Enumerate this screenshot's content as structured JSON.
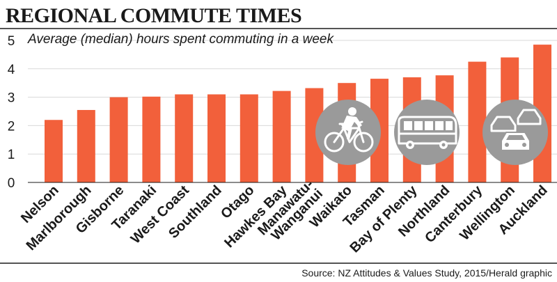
{
  "colors": {
    "bar": "#f2603b",
    "grid": "#d8d8d8",
    "text": "#1a1a1a",
    "icon_circle": "#9a9a9a",
    "icon_stroke": "#ffffff"
  },
  "icons": [
    "bicycle-icon",
    "bus-icon",
    "traffic-cars-icon"
  ],
  "chart_data": {
    "type": "bar",
    "title": "REGIONAL COMMUTE TIMES",
    "subtitle": "Average (median) hours spent commuting in a week",
    "source": "Source: NZ Attitudes & Values Study, 2015/Herald graphic",
    "categories": [
      "Nelson",
      "Marlborough",
      "Gisborne",
      "Taranaki",
      "West Coast",
      "Southland",
      "Otago",
      "Hawkes Bay",
      "Manawatu-Wanganui",
      "Waikato",
      "Tasman",
      "Bay of Plenty",
      "Northland",
      "Canterbury",
      "Wellington",
      "Auckland"
    ],
    "category_lines": [
      [
        "Nelson"
      ],
      [
        "Marlborough"
      ],
      [
        "Gisborne"
      ],
      [
        "Taranaki"
      ],
      [
        "West Coast"
      ],
      [
        "Southland"
      ],
      [
        "Otago"
      ],
      [
        "Hawkes Bay"
      ],
      [
        "Manawatu-",
        "Wanganui"
      ],
      [
        "Waikato"
      ],
      [
        "Tasman"
      ],
      [
        "Bay of Plenty"
      ],
      [
        "Northland"
      ],
      [
        "Canterbury"
      ],
      [
        "Wellington"
      ],
      [
        "Auckland"
      ]
    ],
    "values": [
      2.2,
      2.55,
      3.0,
      3.02,
      3.1,
      3.1,
      3.1,
      3.22,
      3.32,
      3.5,
      3.65,
      3.7,
      3.77,
      4.25,
      4.4,
      4.85
    ],
    "ylim": [
      0,
      5
    ],
    "yticks": [
      0,
      1,
      2,
      3,
      4,
      5
    ],
    "grid": true,
    "xlabel": "",
    "ylabel": ""
  }
}
